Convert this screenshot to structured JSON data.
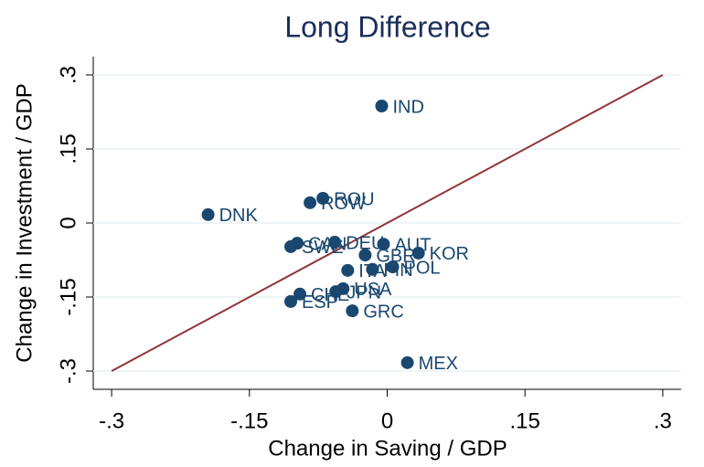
{
  "chart_data": {
    "type": "scatter",
    "title": "Long Difference",
    "x_label": "Change in Saving / GDP",
    "y_label": "Change in Investment / GDP",
    "xlim": [
      -0.32,
      0.32
    ],
    "ylim": [
      -0.337,
      0.337
    ],
    "xticks": [
      {
        "value": -0.3,
        "label": "-.3"
      },
      {
        "value": -0.15,
        "label": "-.15"
      },
      0,
      {
        "value": 0.15,
        "label": ".15"
      },
      {
        "value": 0.3,
        "label": ".3"
      }
    ],
    "yticks": [
      {
        "value": -0.3,
        "label": "-.3"
      },
      {
        "value": -0.15,
        "label": "-.15"
      },
      0,
      {
        "value": 0.15,
        "label": ".15"
      },
      {
        "value": 0.3,
        "label": ".3"
      }
    ],
    "grid": true,
    "color": "#1a476f",
    "labels": [
      "IND",
      "DNK",
      "ROU",
      "ROW",
      "CAN",
      "SWE",
      "DEU",
      "AUT",
      "GBR",
      "KOR",
      "POL",
      "ITA",
      "FIN",
      "USA",
      "JPN",
      "CHE",
      "ESP",
      "GRC",
      "MEX"
    ],
    "x": [
      -0.006,
      -0.195,
      -0.07,
      -0.084,
      -0.098,
      -0.105,
      -0.057,
      -0.004,
      -0.024,
      0.034,
      0.006,
      -0.043,
      -0.016,
      -0.048,
      -0.056,
      -0.095,
      -0.105,
      -0.038,
      0.022
    ],
    "y": [
      0.237,
      0.017,
      0.05,
      0.041,
      -0.041,
      -0.048,
      -0.039,
      -0.043,
      -0.065,
      -0.061,
      -0.089,
      -0.096,
      -0.094,
      -0.133,
      -0.139,
      -0.144,
      -0.159,
      -0.178,
      -0.283
    ],
    "reference_line": {
      "x": [
        -0.3,
        0.3
      ],
      "y": [
        -0.3,
        0.3
      ],
      "color": "#90353b"
    }
  }
}
